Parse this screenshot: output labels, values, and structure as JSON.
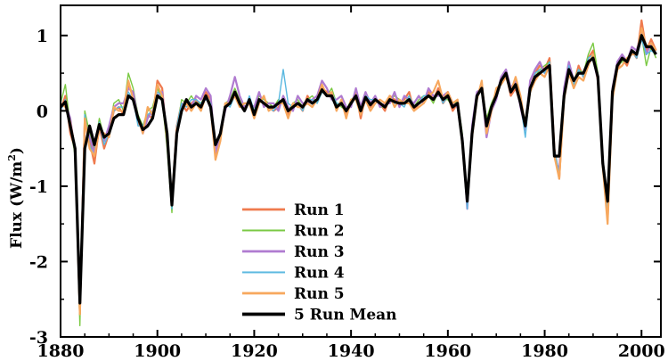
{
  "chart_data": {
    "type": "line",
    "title_visible_fragment": "",
    "xlabel": "",
    "ylabel": "Flux (W/m",
    "ylabel_superscript": "2",
    "ylabel_close": ")",
    "xlim": [
      1880,
      2004
    ],
    "ylim": [
      -3,
      1.4
    ],
    "xticks": [
      1880,
      1900,
      1920,
      1940,
      1960,
      1980,
      2000
    ],
    "xtick_labels": [
      "1880",
      "1900",
      "1920",
      "1940",
      "1960",
      "1980",
      "2000"
    ],
    "yticks": [
      -3,
      -2,
      -1,
      0,
      1
    ],
    "ytick_labels": [
      "-3",
      "-2",
      "-1",
      "0",
      "1"
    ],
    "legend_position": "lower-center",
    "grid": false,
    "x": [
      1880,
      1881,
      1882,
      1883,
      1884,
      1885,
      1886,
      1887,
      1888,
      1889,
      1890,
      1891,
      1892,
      1893,
      1894,
      1895,
      1896,
      1897,
      1898,
      1899,
      1900,
      1901,
      1902,
      1903,
      1904,
      1905,
      1906,
      1907,
      1908,
      1909,
      1910,
      1911,
      1912,
      1913,
      1914,
      1915,
      1916,
      1917,
      1918,
      1919,
      1920,
      1921,
      1922,
      1923,
      1924,
      1925,
      1926,
      1927,
      1928,
      1929,
      1930,
      1931,
      1932,
      1933,
      1934,
      1935,
      1936,
      1937,
      1938,
      1939,
      1940,
      1941,
      1942,
      1943,
      1944,
      1945,
      1946,
      1947,
      1948,
      1949,
      1950,
      1951,
      1952,
      1953,
      1954,
      1955,
      1956,
      1957,
      1958,
      1959,
      1960,
      1961,
      1962,
      1963,
      1964,
      1965,
      1966,
      1967,
      1968,
      1969,
      1970,
      1971,
      1972,
      1973,
      1974,
      1975,
      1976,
      1977,
      1978,
      1979,
      1980,
      1981,
      1982,
      1983,
      1984,
      1985,
      1986,
      1987,
      1988,
      1989,
      1990,
      1991,
      1992,
      1993,
      1994,
      1995,
      1996,
      1997,
      1998,
      1999,
      2000,
      2001,
      2002,
      2003
    ],
    "series": [
      {
        "name": "Run 1",
        "color": "#ef7a4e",
        "width": 2.2,
        "values": [
          0.0,
          0.2,
          -0.3,
          -0.5,
          -2.7,
          -0.1,
          -0.4,
          -0.7,
          -0.2,
          -0.5,
          -0.3,
          0.0,
          0.05,
          -0.05,
          0.35,
          0.2,
          -0.15,
          -0.25,
          -0.05,
          -0.1,
          0.4,
          0.3,
          -0.4,
          -1.2,
          -0.2,
          0.1,
          0.0,
          0.1,
          0.15,
          0.05,
          0.25,
          0.15,
          -0.6,
          -0.35,
          0.05,
          0.1,
          0.25,
          0.1,
          0.0,
          0.15,
          -0.05,
          0.15,
          0.1,
          0.05,
          0.0,
          0.05,
          0.15,
          -0.05,
          0.05,
          0.1,
          0.0,
          0.2,
          0.1,
          0.15,
          0.3,
          0.25,
          0.2,
          0.05,
          0.1,
          -0.05,
          0.1,
          0.25,
          -0.1,
          0.2,
          0.05,
          0.15,
          0.1,
          0.0,
          0.2,
          0.15,
          0.1,
          0.15,
          0.25,
          0.0,
          0.1,
          0.15,
          0.25,
          0.15,
          0.3,
          0.1,
          0.2,
          0.0,
          0.1,
          -0.4,
          -1.25,
          -0.3,
          0.2,
          0.35,
          -0.2,
          0.05,
          0.2,
          0.4,
          0.5,
          0.2,
          0.3,
          0.1,
          -0.2,
          0.3,
          0.5,
          0.6,
          0.55,
          0.7,
          -0.5,
          -0.9,
          0.2,
          0.6,
          0.35,
          0.6,
          0.45,
          0.7,
          0.8,
          0.45,
          -0.7,
          -1.45,
          0.2,
          0.55,
          0.7,
          0.6,
          0.8,
          0.7,
          1.2,
          0.8,
          0.95,
          0.8
        ]
      },
      {
        "name": "Run 2",
        "color": "#7ac943",
        "width": 1.4,
        "values": [
          0.1,
          0.35,
          -0.2,
          -0.6,
          -2.85,
          0.0,
          -0.3,
          -0.5,
          -0.1,
          -0.35,
          -0.25,
          0.1,
          0.15,
          0.0,
          0.5,
          0.3,
          -0.05,
          -0.2,
          0.0,
          0.05,
          0.3,
          0.15,
          -0.5,
          -1.35,
          -0.25,
          0.15,
          0.1,
          0.2,
          0.1,
          0.1,
          0.2,
          0.1,
          -0.5,
          -0.4,
          0.1,
          0.15,
          0.3,
          0.15,
          0.05,
          0.1,
          0.0,
          0.2,
          0.15,
          0.1,
          0.05,
          0.15,
          0.1,
          0.0,
          0.1,
          0.15,
          0.05,
          0.15,
          0.2,
          0.1,
          0.25,
          0.2,
          0.3,
          0.1,
          0.05,
          0.0,
          0.15,
          0.2,
          -0.05,
          0.15,
          0.1,
          0.2,
          0.05,
          0.05,
          0.15,
          0.2,
          0.15,
          0.1,
          0.2,
          0.05,
          0.15,
          0.2,
          0.2,
          0.1,
          0.25,
          0.15,
          0.15,
          0.05,
          0.15,
          -0.3,
          -1.2,
          -0.25,
          0.25,
          0.3,
          -0.1,
          0.1,
          0.25,
          0.35,
          0.45,
          0.25,
          0.35,
          0.15,
          -0.15,
          0.35,
          0.45,
          0.55,
          0.6,
          0.65,
          -0.55,
          -0.85,
          0.25,
          0.55,
          0.4,
          0.55,
          0.5,
          0.75,
          0.9,
          0.5,
          -0.6,
          -1.35,
          0.25,
          0.6,
          0.65,
          0.7,
          0.75,
          0.75,
          1.0,
          0.6,
          0.85,
          0.7
        ]
      },
      {
        "name": "Run 3",
        "color": "#b07bd0",
        "width": 2.2,
        "values": [
          0.05,
          0.1,
          -0.1,
          -0.55,
          -2.6,
          -0.15,
          -0.35,
          -0.55,
          -0.2,
          -0.4,
          -0.2,
          0.05,
          0.1,
          0.1,
          0.3,
          0.25,
          -0.1,
          -0.3,
          -0.1,
          0.0,
          0.2,
          0.25,
          -0.35,
          -1.25,
          -0.3,
          0.05,
          0.15,
          0.05,
          0.2,
          0.15,
          0.3,
          0.2,
          -0.55,
          -0.3,
          0.0,
          0.2,
          0.45,
          0.2,
          0.05,
          0.1,
          0.05,
          0.25,
          0.05,
          0.1,
          0.1,
          0.0,
          0.2,
          0.05,
          0.0,
          0.2,
          0.1,
          0.1,
          0.15,
          0.2,
          0.4,
          0.3,
          0.15,
          0.15,
          0.2,
          0.05,
          0.05,
          0.3,
          0.05,
          0.25,
          0.1,
          0.2,
          0.05,
          0.1,
          0.1,
          0.25,
          0.05,
          0.2,
          0.15,
          0.1,
          0.2,
          0.1,
          0.3,
          0.2,
          0.2,
          0.2,
          0.25,
          0.1,
          0.05,
          -0.35,
          -1.3,
          -0.2,
          0.25,
          0.3,
          -0.35,
          0.0,
          0.15,
          0.45,
          0.55,
          0.3,
          0.4,
          0.05,
          -0.25,
          0.4,
          0.55,
          0.65,
          0.5,
          0.6,
          -0.6,
          -0.8,
          0.3,
          0.65,
          0.4,
          0.5,
          0.5,
          0.65,
          0.7,
          0.4,
          -0.65,
          -1.4,
          0.3,
          0.65,
          0.75,
          0.65,
          0.85,
          0.8,
          1.05,
          0.75,
          0.9,
          0.75
        ]
      },
      {
        "name": "Run 4",
        "color": "#5ab8e0",
        "width": 1.4,
        "values": [
          0.0,
          0.15,
          -0.25,
          -0.45,
          -2.65,
          -0.05,
          -0.45,
          -0.6,
          -0.15,
          -0.45,
          -0.3,
          0.0,
          0.05,
          0.05,
          0.25,
          0.15,
          -0.2,
          -0.2,
          -0.05,
          0.0,
          0.25,
          0.2,
          -0.45,
          -1.3,
          -0.2,
          0.1,
          0.05,
          0.15,
          0.15,
          0.1,
          0.15,
          0.1,
          -0.45,
          -0.35,
          0.1,
          0.05,
          0.2,
          0.1,
          0.0,
          0.2,
          0.0,
          0.15,
          0.1,
          0.05,
          0.0,
          0.1,
          0.55,
          0.1,
          0.05,
          0.1,
          0.0,
          0.15,
          0.15,
          0.1,
          0.25,
          0.2,
          0.25,
          0.1,
          0.1,
          0.0,
          0.1,
          0.2,
          0.0,
          0.2,
          0.15,
          0.15,
          0.1,
          0.05,
          0.2,
          0.1,
          0.1,
          0.05,
          0.2,
          0.05,
          0.1,
          0.2,
          0.2,
          0.15,
          0.25,
          0.1,
          0.2,
          0.05,
          0.1,
          -0.4,
          -1.3,
          -0.3,
          0.2,
          0.3,
          -0.2,
          0.05,
          0.2,
          0.4,
          0.5,
          0.25,
          0.35,
          0.1,
          -0.35,
          0.3,
          0.5,
          0.55,
          0.5,
          0.65,
          -0.5,
          -0.85,
          0.2,
          0.6,
          0.35,
          0.55,
          0.45,
          0.7,
          0.75,
          0.45,
          -0.65,
          -1.3,
          0.25,
          0.6,
          0.7,
          0.65,
          0.8,
          0.7,
          0.95,
          0.75,
          0.8,
          0.75
        ]
      },
      {
        "name": "Run 5",
        "color": "#f7a85e",
        "width": 2.2,
        "values": [
          0.1,
          0.05,
          -0.15,
          -0.5,
          -2.7,
          -0.1,
          -0.5,
          -0.6,
          -0.25,
          -0.3,
          -0.35,
          0.05,
          0.0,
          0.0,
          0.4,
          0.15,
          -0.1,
          -0.3,
          0.05,
          -0.05,
          0.35,
          0.2,
          -0.4,
          -1.2,
          -0.25,
          0.0,
          0.1,
          0.0,
          0.1,
          0.0,
          0.2,
          0.05,
          -0.65,
          -0.4,
          0.1,
          0.1,
          0.2,
          0.05,
          0.1,
          0.1,
          -0.1,
          0.1,
          0.2,
          0.0,
          0.05,
          0.1,
          0.1,
          -0.1,
          0.1,
          0.05,
          0.05,
          0.1,
          0.05,
          0.15,
          0.35,
          0.2,
          0.25,
          0.0,
          0.15,
          -0.1,
          0.15,
          0.15,
          -0.05,
          0.15,
          0.0,
          0.1,
          0.15,
          0.1,
          0.2,
          0.05,
          0.15,
          0.1,
          0.1,
          0.0,
          0.05,
          0.1,
          0.2,
          0.25,
          0.4,
          0.15,
          0.25,
          0.1,
          0.15,
          -0.45,
          -1.2,
          -0.35,
          0.15,
          0.4,
          -0.3,
          0.0,
          0.3,
          0.35,
          0.45,
          0.25,
          0.45,
          0.2,
          -0.2,
          0.25,
          0.4,
          0.5,
          0.45,
          0.6,
          -0.6,
          -0.9,
          0.15,
          0.5,
          0.3,
          0.45,
          0.4,
          0.6,
          0.75,
          0.4,
          -0.75,
          -1.5,
          0.15,
          0.55,
          0.6,
          0.7,
          0.75,
          0.75,
          1.1,
          0.85,
          0.9,
          0.8
        ]
      },
      {
        "name": "5 Run Mean",
        "color": "#000000",
        "width": 3.2,
        "values": [
          0.05,
          0.12,
          -0.2,
          -0.5,
          -2.55,
          -0.5,
          -0.2,
          -0.45,
          -0.18,
          -0.35,
          -0.3,
          -0.1,
          -0.05,
          -0.05,
          0.2,
          0.15,
          -0.1,
          -0.25,
          -0.2,
          -0.1,
          0.2,
          0.15,
          -0.3,
          -1.25,
          -0.3,
          0.0,
          0.15,
          0.05,
          0.1,
          0.05,
          0.2,
          0.05,
          -0.45,
          -0.3,
          0.05,
          0.1,
          0.25,
          0.1,
          0.0,
          0.15,
          -0.05,
          0.15,
          0.1,
          0.05,
          0.05,
          0.1,
          0.15,
          0.0,
          0.05,
          0.1,
          0.05,
          0.15,
          0.1,
          0.15,
          0.28,
          0.2,
          0.2,
          0.05,
          0.1,
          0.0,
          0.1,
          0.2,
          0.0,
          0.18,
          0.08,
          0.15,
          0.1,
          0.05,
          0.15,
          0.12,
          0.1,
          0.1,
          0.15,
          0.05,
          0.1,
          0.15,
          0.2,
          0.15,
          0.25,
          0.15,
          0.2,
          0.05,
          0.1,
          -0.4,
          -1.2,
          -0.3,
          0.2,
          0.3,
          -0.2,
          0.05,
          0.2,
          0.4,
          0.5,
          0.25,
          0.35,
          0.1,
          -0.2,
          0.3,
          0.45,
          0.5,
          0.55,
          0.6,
          -0.6,
          -0.6,
          0.2,
          0.55,
          0.4,
          0.5,
          0.5,
          0.65,
          0.7,
          0.45,
          -0.7,
          -1.2,
          0.25,
          0.6,
          0.7,
          0.65,
          0.8,
          0.75,
          1.0,
          0.85,
          0.85,
          0.75
        ]
      }
    ]
  }
}
